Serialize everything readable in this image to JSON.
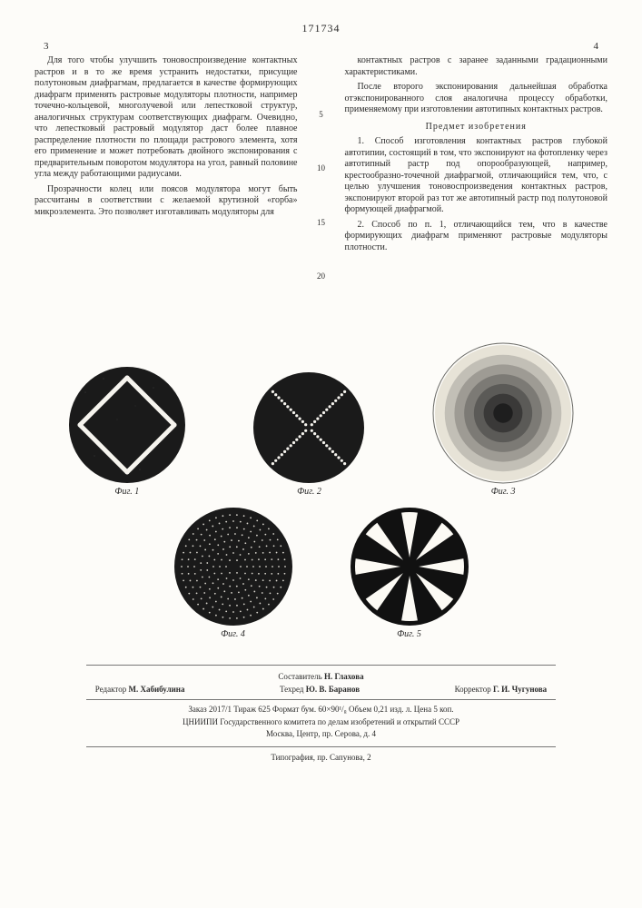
{
  "document_number": "171734",
  "columns": {
    "left_num": "3",
    "right_num": "4"
  },
  "left_col": {
    "p1": "Для того чтобы улучшить тоновоспроизведение контактных растров и в то же время устранить недостатки, присущие полутоновым диафрагмам, предлагается в качестве формирующих диафрагм применять растровые модуляторы плотности, например точечно-кольцевой, многолучевой или лепестковой структур, аналогичных структурам соответствующих диафрагм. Очевидно, что лепестковый растровый модулятор даст более плавное распределение плотности по площади растрового элемента, хотя его применение и может потребовать двойного экспонирования с предварительным поворотом модулятора на угол, равный половине угла между работающими радиусами.",
    "p2": "Прозрачности колец или поясов модулятора могут быть рассчитаны в соответствии с желаемой крутизной «горба» микроэлемента. Это позволяет изготавливать модуляторы для"
  },
  "right_col": {
    "p1": "контактных растров с заранее заданными градационными характеристиками.",
    "p2": "После второго экспонирования дальнейшая обработка отэкспонированного слоя аналогична процессу обработки, применяемому при изготовлении автотипных контактных растров.",
    "subject_heading": "Предмет изобретения",
    "claim1": "1. Способ изготовления контактных растров глубокой автотипии, состоящий в том, что экспонируют на фотопленку через автотипный растр под опорообразующей, например, крестообразно-точечной диафрагмой, отличающийся тем, что, с целью улучшения тоновоспроизведения контактных растров, экспонируют второй раз тот же автотипный растр под полутоновой формующей диафрагмой.",
    "claim2": "2. Способ по п. 1, отличающийся тем, что в качестве формирующих диафрагм применяют растровые модуляторы плотности."
  },
  "line_numbers": [
    "5",
    "10",
    "15",
    "20"
  ],
  "figures": {
    "fig1": {
      "caption": "Фиг. 1",
      "type": "diamond-slits",
      "bg": "#1a1a1a",
      "slit": "#f6f4ee",
      "diameter": 132
    },
    "fig2": {
      "caption": "Фиг. 2",
      "type": "dot-cross",
      "bg": "#1a1a1a",
      "dot": "#f6f4ee",
      "diameter": 126
    },
    "fig3": {
      "caption": "Фиг. 3",
      "type": "concentric-gradient",
      "rings": [
        "#1e1e1e",
        "#3a3938",
        "#5b5a57",
        "#7c7a75",
        "#9e9b94",
        "#c2bfb6",
        "#e7e3d7"
      ],
      "diameter": 158
    },
    "fig4": {
      "caption": "Фиг. 4",
      "type": "concentric-dots",
      "bg": "#1a1a1a",
      "dot": "#d7d4cc",
      "diameter": 134
    },
    "fig5": {
      "caption": "Фиг. 5",
      "type": "petal",
      "bg": "#111111",
      "petal": "#fcfaf4",
      "diameter": 134,
      "petals": 8
    }
  },
  "footer": {
    "compiler_label": "Составитель",
    "compiler": "Н. Глахова",
    "editor_label": "Редактор",
    "editor": "М. Хабибулина",
    "tech_label": "Техред",
    "tech": "Ю. В. Баранов",
    "corr_label": "Корректор",
    "corr": "Г. И. Чугунова",
    "order_line": "Заказ 2017/1  Тираж 625  Формат бум. 60×90¹/₈  Объем 0,21 изд. л.  Цена 5 коп.",
    "org_line1": "ЦНИИПИ Государственного комитета по делам изобретений и открытий СССР",
    "org_line2": "Москва, Центр, пр. Серова, д. 4",
    "typo_line": "Типография, пр. Сапунова, 2"
  }
}
